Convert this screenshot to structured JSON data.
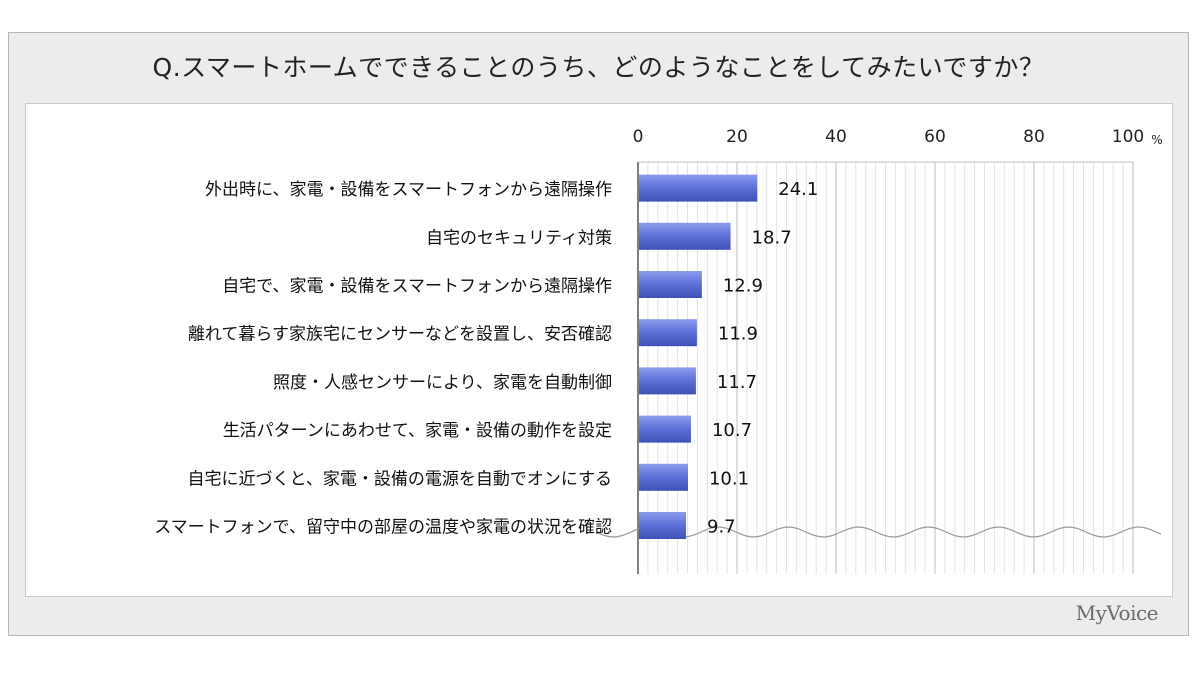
{
  "title": "Q.スマートホームでできることのうち、どのようなことをしてみたいですか？",
  "brand": "MyVoice",
  "chart_data": {
    "type": "bar",
    "orientation": "horizontal",
    "categories": [
      "外出時に、家電・設備をスマートフォンから遠隔操作",
      "自宅のセキュリティ対策",
      "自宅で、家電・設備をスマートフォンから遠隔操作",
      "離れて暮らす家族宅にセンサーなどを設置し、安否確認",
      "照度・人感センサーにより、家電を自動制御",
      "生活パターンにあわせて、家電・設備の動作を設定",
      "自宅に近づくと、家電・設備の電源を自動でオンにする",
      "スマートフォンで、留守中の部屋の温度や家電の状況を確認"
    ],
    "values": [
      24.1,
      18.7,
      12.9,
      11.9,
      11.7,
      10.7,
      10.1,
      9.7
    ],
    "value_labels": [
      "24.1",
      "18.7",
      "12.9",
      "11.9",
      "11.7",
      "10.7",
      "10.1",
      "9.7"
    ],
    "xlim": [
      0,
      100
    ],
    "xticks": [
      "0",
      "20",
      "40",
      "60",
      "80",
      "100"
    ],
    "xunit": "%",
    "axis_position": "top",
    "grid": true,
    "bar_color": "#5b6fd6"
  }
}
